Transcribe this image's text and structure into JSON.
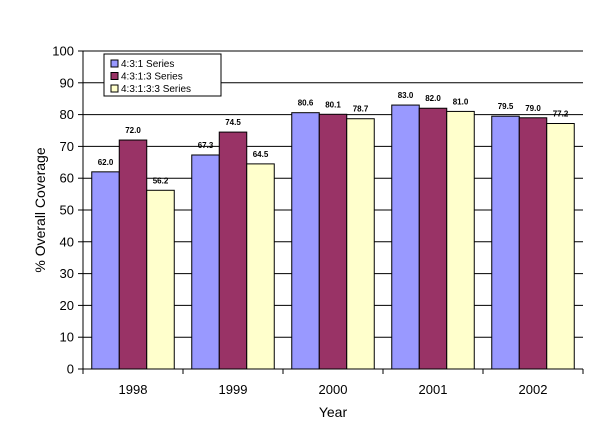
{
  "chart_data": {
    "type": "bar",
    "title": "",
    "xlabel": "Year",
    "ylabel": "% Overall Coverage",
    "ylim": [
      0,
      100
    ],
    "yticks": [
      0,
      10,
      20,
      30,
      40,
      50,
      60,
      70,
      80,
      90,
      100
    ],
    "grid": true,
    "legend_position": "top-left",
    "categories": [
      "1998",
      "1999",
      "2000",
      "2001",
      "2002"
    ],
    "series": [
      {
        "name": "4:3:1 Series",
        "color": "#9999ff",
        "values": [
          62.0,
          67.3,
          80.6,
          83.0,
          79.5
        ],
        "labels": [
          "62.0",
          "67.3",
          "80.6",
          "83.0",
          "79.5"
        ]
      },
      {
        "name": "4:3:1:3 Series",
        "color": "#993366",
        "values": [
          72.0,
          74.5,
          80.1,
          82.0,
          79.0
        ],
        "labels": [
          "72.0",
          "74.5",
          "80.1",
          "82.0",
          "79.0"
        ]
      },
      {
        "name": "4:3:1:3:3 Series",
        "color": "#ffffcc",
        "values": [
          56.2,
          64.5,
          78.7,
          81.0,
          77.2
        ],
        "labels": [
          "56.2",
          "64.5",
          "78.7",
          "81.0",
          "77.2"
        ]
      }
    ]
  }
}
